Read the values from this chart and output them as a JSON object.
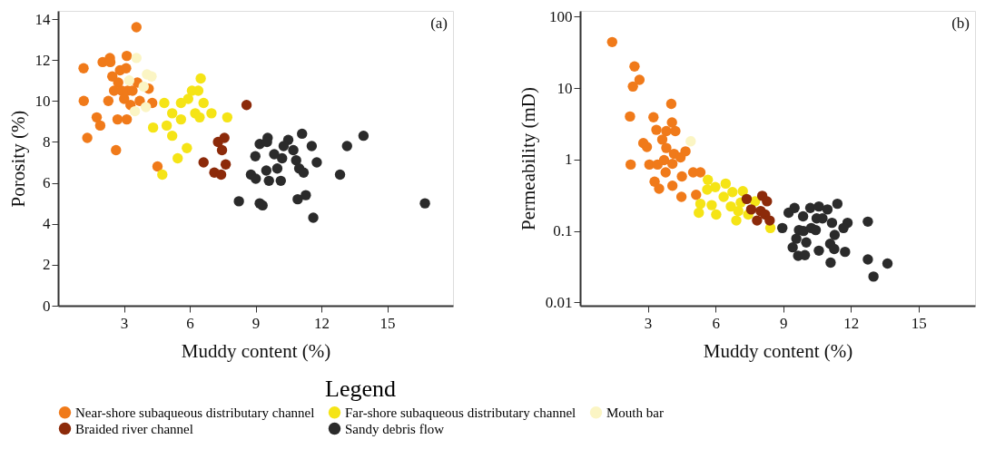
{
  "chart_data": [
    {
      "type": "scatter",
      "title": "(a)",
      "xlabel": "Muddy content (%)",
      "ylabel": "Porosity (%)",
      "xlim": [
        0,
        18
      ],
      "xticks": [
        3,
        6,
        9,
        12,
        15
      ],
      "ylim": [
        0,
        14.4
      ],
      "yticks": [
        0,
        2,
        4,
        6,
        8,
        10,
        12,
        14
      ],
      "grid": false,
      "marker": "circle",
      "legend": "bottom",
      "legend_title": "Legend",
      "series": [
        {
          "name": "Near-shore subaqueous distributary channel",
          "color": "#f07a1a",
          "x": [
            3.57,
            1.16,
            1.17,
            1.33,
            1.76,
            1.92,
            2.03,
            2.36,
            2.38,
            2.47,
            2.29,
            2.64,
            2.74,
            2.82,
            3.1,
            3.13,
            2.55,
            2.9,
            3.01,
            3.17,
            3.39,
            3.3,
            3.61,
            3.72,
            2.71,
            3.13,
            4.13,
            4.29,
            4.53
          ],
          "values": [
            13.6,
            11.6,
            10.0,
            8.2,
            9.2,
            8.8,
            11.9,
            12.1,
            11.9,
            11.2,
            10.0,
            7.6,
            10.9,
            11.5,
            11.6,
            12.2,
            10.5,
            10.5,
            10.1,
            10.5,
            10.5,
            9.8,
            10.9,
            10.0,
            9.1,
            9.1,
            10.6,
            9.9,
            6.8
          ]
        },
        {
          "name": "Far-shore subaqueous distributary channel",
          "color": "#f5e416",
          "x": [
            6.5,
            6.1,
            6.39,
            5.93,
            5.6,
            4.84,
            6.63,
            5.2,
            6.25,
            6.45,
            6.99,
            7.71,
            5.6,
            4.33,
            4.95,
            5.2,
            5.87,
            5.45,
            4.75
          ],
          "values": [
            11.1,
            10.5,
            10.5,
            10.1,
            9.9,
            9.9,
            9.9,
            9.4,
            9.4,
            9.2,
            9.4,
            9.2,
            9.1,
            8.7,
            8.8,
            8.3,
            7.7,
            7.2,
            6.4
          ]
        },
        {
          "name": "Mouth bar",
          "color": "#fbf5c4",
          "x": [
            3.57,
            3.24,
            4.05,
            4.26,
            3.9,
            3.5,
            4.0
          ],
          "values": [
            12.1,
            11.0,
            11.3,
            11.2,
            10.7,
            9.5,
            9.7
          ]
        },
        {
          "name": "Braided river channel",
          "color": "#8c2a0a",
          "x": [
            8.59,
            7.29,
            7.58,
            7.47,
            6.63,
            7.64,
            7.12,
            7.43
          ],
          "values": [
            9.8,
            8.0,
            8.2,
            7.6,
            7.0,
            6.9,
            6.5,
            6.4
          ]
        },
        {
          "name": "Sandy debris flow",
          "color": "#2b2b2b",
          "x": [
            8.24,
            9.55,
            9.19,
            9.52,
            8.99,
            11.12,
            10.49,
            10.28,
            10.72,
            11.56,
            9.85,
            10.21,
            10.85,
            11.79,
            9.49,
            9.99,
            10.99,
            11.19,
            8.79,
            9.01,
            9.61,
            10.15,
            12.85,
            13.17,
            13.92,
            9.19,
            9.32,
            10.92,
            11.29,
            11.63,
            16.72
          ],
          "values": [
            5.1,
            8.2,
            7.9,
            8.0,
            7.3,
            8.4,
            8.1,
            7.8,
            7.6,
            7.8,
            7.4,
            7.2,
            7.1,
            7.0,
            6.6,
            6.7,
            6.7,
            6.5,
            6.4,
            6.2,
            6.1,
            6.1,
            6.4,
            7.8,
            8.3,
            5.0,
            4.9,
            5.2,
            5.4,
            4.3,
            5.0
          ]
        }
      ]
    },
    {
      "type": "scatter",
      "title": "(b)",
      "xlabel": "Muddy content (%)",
      "ylabel": "Permeability (mD)",
      "log": "y",
      "xlim": [
        0,
        17.5
      ],
      "xticks": [
        3,
        6,
        9,
        12,
        15
      ],
      "ylim": [
        0.009,
        120
      ],
      "yticks": [
        0.01,
        0.1,
        1,
        10,
        100
      ],
      "grid": false,
      "marker": "circle",
      "series": [
        {
          "name": "Near-shore subaqueous distributary channel",
          "color": "#f07a1a",
          "x": [
            1.42,
            2.41,
            2.63,
            2.34,
            2.21,
            2.24,
            4.04,
            3.25,
            4.07,
            3.38,
            3.82,
            4.22,
            3.64,
            2.8,
            2.96,
            3.82,
            4.16,
            4.67,
            4.45,
            3.72,
            4.09,
            3.07,
            3.43,
            3.79,
            4.51,
            5.01,
            5.33,
            3.3,
            3.5,
            4.09,
            4.49,
            5.14
          ],
          "values": [
            44,
            20,
            13,
            10.5,
            4.0,
            0.85,
            6.0,
            3.9,
            3.3,
            2.6,
            2.5,
            2.5,
            1.9,
            1.7,
            1.5,
            1.45,
            1.2,
            1.3,
            1.07,
            0.98,
            0.87,
            0.85,
            0.85,
            0.66,
            0.58,
            0.66,
            0.66,
            0.49,
            0.39,
            0.43,
            0.3,
            0.32
          ]
        },
        {
          "name": "Far-shore subaqueous distributary channel",
          "color": "#f5e416",
          "x": [
            5.66,
            6.45,
            5.63,
            5.99,
            6.75,
            7.21,
            6.36,
            5.33,
            5.83,
            6.68,
            7.12,
            7.75,
            7.01,
            5.26,
            6.03,
            6.92,
            7.45,
            8.43
          ],
          "values": [
            0.52,
            0.46,
            0.38,
            0.41,
            0.35,
            0.36,
            0.3,
            0.24,
            0.23,
            0.22,
            0.25,
            0.26,
            0.19,
            0.18,
            0.17,
            0.14,
            0.17,
            0.11
          ]
        },
        {
          "name": "Mouth bar",
          "color": "#fbf5c4",
          "x": [
            4.9
          ],
          "values": [
            1.8
          ]
        },
        {
          "name": "Braided river channel",
          "color": "#8c2a0a",
          "x": [
            7.38,
            8.07,
            8.28,
            7.58,
            8.0,
            8.2,
            8.4,
            7.84
          ],
          "values": [
            0.28,
            0.31,
            0.26,
            0.2,
            0.19,
            0.17,
            0.14,
            0.14
          ]
        },
        {
          "name": "Sandy debris flow",
          "color": "#2b2b2b",
          "x": [
            8.96,
            9.24,
            9.5,
            10.2,
            10.58,
            10.96,
            11.4,
            9.88,
            10.48,
            10.74,
            11.16,
            11.85,
            11.67,
            12.75,
            9.7,
            9.9,
            10.24,
            10.44,
            11.28,
            9.58,
            10.02,
            9.42,
            11.08,
            11.26,
            10.58,
            11.74,
            9.66,
            9.96,
            11.1,
            12.75,
            13.62,
            13.0
          ],
          "values": [
            0.11,
            0.18,
            0.21,
            0.21,
            0.22,
            0.2,
            0.24,
            0.16,
            0.15,
            0.15,
            0.13,
            0.13,
            0.11,
            0.135,
            0.103,
            0.1,
            0.11,
            0.103,
            0.088,
            0.078,
            0.069,
            0.059,
            0.066,
            0.056,
            0.053,
            0.051,
            0.045,
            0.046,
            0.036,
            0.04,
            0.035,
            0.023
          ]
        }
      ]
    }
  ]
}
